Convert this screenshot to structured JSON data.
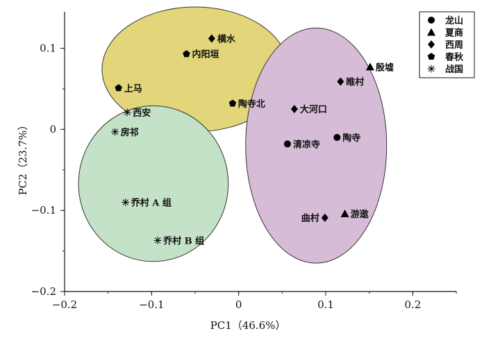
{
  "chart_data": {
    "type": "scatter",
    "xlabel": "PC1（46.6%）",
    "ylabel": "PC2（23.7%）",
    "xlim": [
      -0.2,
      0.25
    ],
    "ylim": [
      -0.2,
      0.145
    ],
    "xticks": [
      -0.2,
      -0.1,
      0,
      0.1,
      0.2
    ],
    "xtick_labels": [
      "−0.2",
      "−0.1",
      "0",
      "0.1",
      "0.2"
    ],
    "yticks": [
      0.1,
      0,
      -0.1,
      -0.2
    ],
    "ytick_labels": [
      "0.1",
      "0",
      "−0.1",
      "−0.2"
    ],
    "legend_position": "top-right",
    "series": [
      {
        "name": "龙山",
        "marker": "circle",
        "points": [
          {
            "label": "清凉寺",
            "x": 0.056,
            "y": -0.018
          },
          {
            "label": "陶寺",
            "x": 0.113,
            "y": -0.01
          }
        ]
      },
      {
        "name": "夏商",
        "marker": "triangle",
        "points": [
          {
            "label": "殷墟",
            "x": 0.151,
            "y": 0.077
          },
          {
            "label": "游遨",
            "x": 0.122,
            "y": -0.104
          }
        ]
      },
      {
        "name": "西周",
        "marker": "diamond",
        "points": [
          {
            "label": "横水",
            "x": -0.031,
            "y": 0.112
          },
          {
            "label": "睢村",
            "x": 0.117,
            "y": 0.059
          },
          {
            "label": "大河口",
            "x": 0.064,
            "y": 0.025
          },
          {
            "label": "曲村",
            "x": 0.099,
            "y": -0.109
          }
        ]
      },
      {
        "name": "春秋",
        "marker": "pentagon",
        "points": [
          {
            "label": "内阳垣",
            "x": -0.06,
            "y": 0.093
          },
          {
            "label": "上马",
            "x": -0.138,
            "y": 0.051
          },
          {
            "label": "陶寺北",
            "x": -0.007,
            "y": 0.032
          }
        ]
      },
      {
        "name": "战国",
        "marker": "asterisk",
        "points": [
          {
            "label": "西安",
            "x": -0.128,
            "y": 0.021
          },
          {
            "label": "房祁",
            "x": -0.142,
            "y": -0.003
          },
          {
            "label": "乔村 A 组",
            "x": -0.13,
            "y": -0.09
          },
          {
            "label": "乔村 B 组",
            "x": -0.093,
            "y": -0.137
          }
        ]
      }
    ],
    "ellipses": [
      {
        "color": "#e2d57a",
        "cx": -0.05,
        "cy": 0.074,
        "rx": 0.107,
        "ry": 0.077
      },
      {
        "color": "#c3e2c8",
        "cx": -0.098,
        "cy": -0.067,
        "rx": 0.086,
        "ry": 0.096
      },
      {
        "color": "#d7bcd8",
        "cx": 0.089,
        "cy": -0.02,
        "rx": 0.081,
        "ry": 0.145
      }
    ]
  }
}
